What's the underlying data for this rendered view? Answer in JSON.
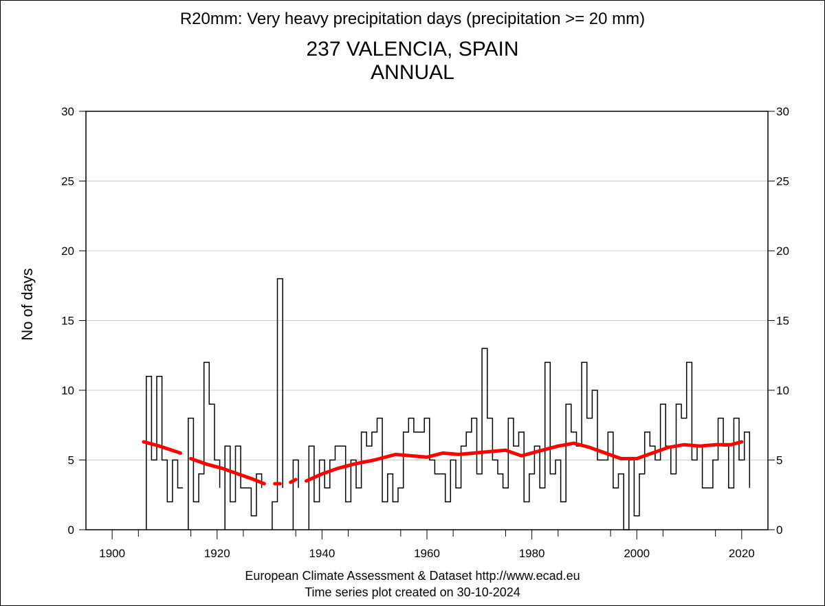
{
  "chart_data": {
    "type": "line",
    "title": "R20mm: Very heavy precipitation days (precipitation >= 20 mm)",
    "subtitle": "237 VALENCIA, SPAIN",
    "period": "ANNUAL",
    "ylabel": "No of days",
    "xlabel": "",
    "xlim": [
      1895,
      2025
    ],
    "ylim": [
      0,
      30
    ],
    "x_ticks": [
      1900,
      1920,
      1940,
      1960,
      1980,
      2000,
      2020
    ],
    "y_ticks": [
      0,
      5,
      10,
      15,
      20,
      25,
      30
    ],
    "grid": true,
    "series": [
      {
        "style": "step",
        "color": "#000000",
        "points": [
          [
            1907,
            11
          ],
          [
            1908,
            5
          ],
          [
            1909,
            11
          ],
          [
            1910,
            5
          ],
          [
            1911,
            2
          ],
          [
            1912,
            5
          ],
          [
            1913,
            3
          ],
          [
            1914,
            null
          ],
          [
            1915,
            8
          ],
          [
            1916,
            2
          ],
          [
            1917,
            4
          ],
          [
            1918,
            12
          ],
          [
            1919,
            9
          ],
          [
            1920,
            5
          ],
          [
            1921,
            null
          ],
          [
            1922,
            6
          ],
          [
            1923,
            2
          ],
          [
            1924,
            6
          ],
          [
            1925,
            3
          ],
          [
            1926,
            3
          ],
          [
            1927,
            1
          ],
          [
            1928,
            4
          ],
          [
            1929,
            null
          ],
          [
            1931,
            2
          ],
          [
            1932,
            18
          ],
          [
            1933,
            null
          ],
          [
            1935,
            5
          ],
          [
            1936,
            null
          ],
          [
            1938,
            6
          ],
          [
            1939,
            2
          ],
          [
            1940,
            5
          ],
          [
            1941,
            3
          ],
          [
            1942,
            5
          ],
          [
            1943,
            6
          ],
          [
            1944,
            6
          ],
          [
            1945,
            2
          ],
          [
            1946,
            5
          ],
          [
            1947,
            3
          ],
          [
            1948,
            7
          ],
          [
            1949,
            6
          ],
          [
            1950,
            7
          ],
          [
            1951,
            8
          ],
          [
            1952,
            2
          ],
          [
            1953,
            4
          ],
          [
            1954,
            2
          ],
          [
            1955,
            3
          ],
          [
            1956,
            7
          ],
          [
            1957,
            8
          ],
          [
            1958,
            7
          ],
          [
            1959,
            7
          ],
          [
            1960,
            8
          ],
          [
            1961,
            5
          ],
          [
            1962,
            4
          ],
          [
            1963,
            4
          ],
          [
            1964,
            2
          ],
          [
            1965,
            5
          ],
          [
            1966,
            3
          ],
          [
            1967,
            6
          ],
          [
            1968,
            7
          ],
          [
            1969,
            8
          ],
          [
            1970,
            4
          ],
          [
            1971,
            13
          ],
          [
            1972,
            8
          ],
          [
            1973,
            5
          ],
          [
            1974,
            4
          ],
          [
            1975,
            3
          ],
          [
            1976,
            8
          ],
          [
            1977,
            6
          ],
          [
            1978,
            7
          ],
          [
            1979,
            2
          ],
          [
            1980,
            4
          ],
          [
            1981,
            6
          ],
          [
            1982,
            3
          ],
          [
            1983,
            12
          ],
          [
            1984,
            4
          ],
          [
            1985,
            5
          ],
          [
            1986,
            2
          ],
          [
            1987,
            9
          ],
          [
            1988,
            7
          ],
          [
            1989,
            6
          ],
          [
            1990,
            12
          ],
          [
            1991,
            8
          ],
          [
            1992,
            10
          ],
          [
            1993,
            5
          ],
          [
            1994,
            5
          ],
          [
            1995,
            7
          ],
          [
            1996,
            3
          ],
          [
            1997,
            4
          ],
          [
            1998,
            0
          ],
          [
            1999,
            5
          ],
          [
            2000,
            1
          ],
          [
            2001,
            4
          ],
          [
            2002,
            7
          ],
          [
            2003,
            6
          ],
          [
            2004,
            5
          ],
          [
            2005,
            9
          ],
          [
            2006,
            6
          ],
          [
            2007,
            4
          ],
          [
            2008,
            9
          ],
          [
            2009,
            8
          ],
          [
            2010,
            12
          ],
          [
            2011,
            5
          ],
          [
            2012,
            6
          ],
          [
            2013,
            3
          ],
          [
            2014,
            3
          ],
          [
            2015,
            5
          ],
          [
            2016,
            8
          ],
          [
            2017,
            6
          ],
          [
            2018,
            3
          ],
          [
            2019,
            8
          ],
          [
            2020,
            5
          ],
          [
            2021,
            7
          ]
        ]
      },
      {
        "style": "smooth-trend",
        "color": "#ff0000",
        "segments": [
          [
            [
              1906,
              6.3
            ],
            [
              1909,
              6.0
            ],
            [
              1913,
              5.5
            ]
          ],
          [
            [
              1915,
              5.1
            ],
            [
              1918,
              4.7
            ],
            [
              1921,
              4.4
            ],
            [
              1924,
              4.0
            ],
            [
              1927,
              3.6
            ],
            [
              1929,
              3.3
            ]
          ],
          [
            [
              1931,
              3.3
            ],
            [
              1932,
              3.3
            ]
          ],
          [
            [
              1934,
              3.4
            ],
            [
              1935,
              3.6
            ]
          ],
          [
            [
              1937,
              3.5
            ],
            [
              1940,
              4.0
            ],
            [
              1943,
              4.4
            ],
            [
              1946,
              4.7
            ],
            [
              1950,
              5.0
            ],
            [
              1954,
              5.4
            ],
            [
              1957,
              5.3
            ],
            [
              1960,
              5.2
            ],
            [
              1963,
              5.5
            ],
            [
              1966,
              5.4
            ],
            [
              1969,
              5.5
            ],
            [
              1972,
              5.6
            ],
            [
              1975,
              5.7
            ],
            [
              1978,
              5.3
            ],
            [
              1981,
              5.6
            ],
            [
              1985,
              6.0
            ],
            [
              1988,
              6.2
            ],
            [
              1991,
              5.9
            ],
            [
              1994,
              5.5
            ],
            [
              1997,
              5.1
            ],
            [
              2000,
              5.1
            ],
            [
              2003,
              5.5
            ],
            [
              2006,
              5.9
            ],
            [
              2009,
              6.1
            ],
            [
              2012,
              6.0
            ],
            [
              2015,
              6.1
            ],
            [
              2018,
              6.1
            ],
            [
              2020,
              6.3
            ]
          ]
        ]
      }
    ]
  },
  "footer": {
    "line1": "European Climate Assessment & Dataset  http://www.ecad.eu",
    "line2": "Time series plot created on 30-10-2024"
  }
}
